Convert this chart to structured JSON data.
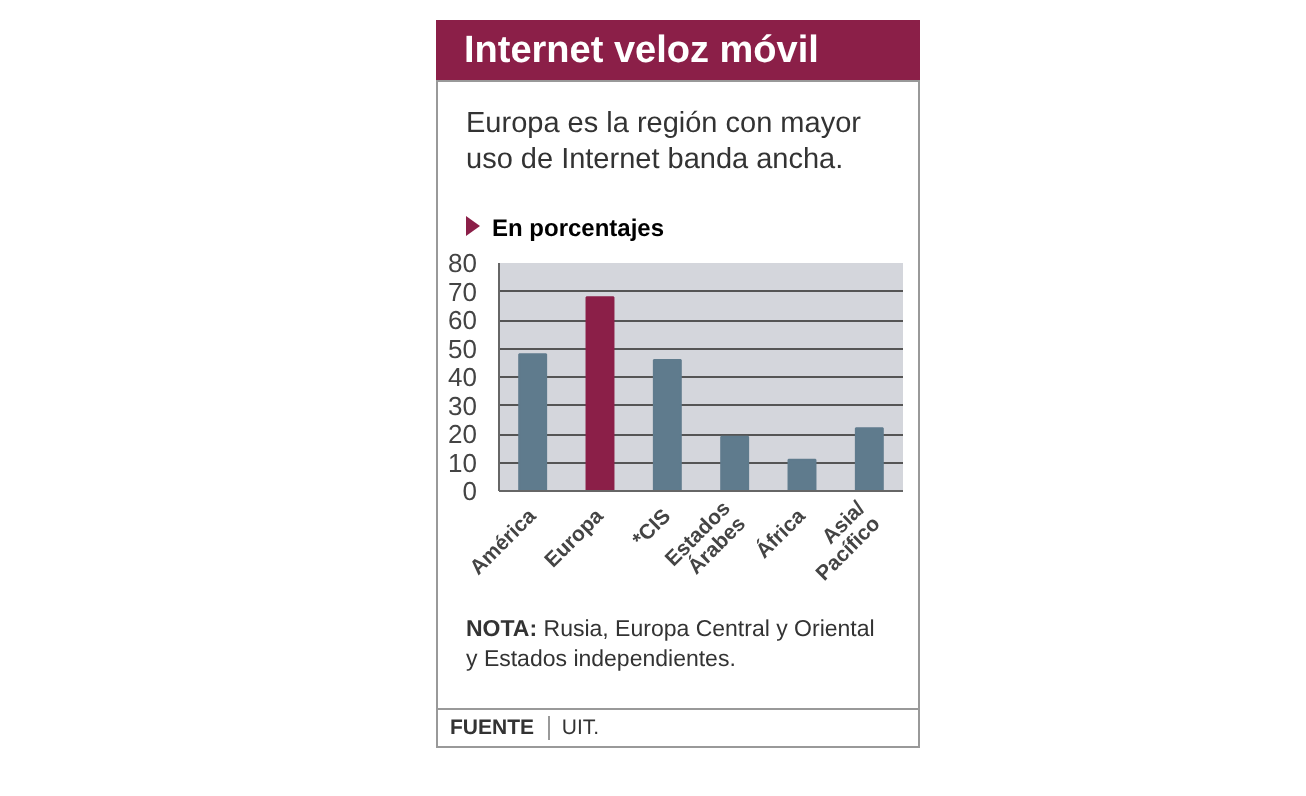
{
  "chart_data": {
    "type": "bar",
    "title": "Internet veloz móvil",
    "subtitle": "Europa es la región con mayor uso de Internet banda ancha.",
    "ylabel": "En porcentajes",
    "categories": [
      "América",
      "Europa",
      "*CIS",
      "Estados\nÁrabes",
      "África",
      "Asia/\nPacífico"
    ],
    "values": [
      48,
      68,
      46,
      19,
      11,
      22
    ],
    "colors": [
      "#5f7b8d",
      "#8b1f48",
      "#5f7b8d",
      "#5f7b8d",
      "#5f7b8d",
      "#5f7b8d"
    ],
    "ylim": [
      0,
      80
    ],
    "yticks": [
      0,
      10,
      20,
      30,
      40,
      50,
      60,
      70,
      80
    ],
    "grid": "y",
    "annotations": [
      "NOTA: Rusia, Europa Central y Oriental y Estados independientes.",
      "FUENTE UIT."
    ]
  }
}
